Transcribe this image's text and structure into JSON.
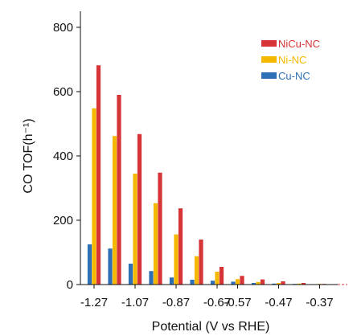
{
  "chart_data": {
    "type": "bar",
    "title": "",
    "xlabel": "Potential (V vs RHE)",
    "ylabel": "CO TOF(h⁻¹)",
    "ylim": [
      0,
      800
    ],
    "yticks": [
      0,
      200,
      400,
      600,
      800
    ],
    "ytick_labels": [
      "0",
      "200",
      "400",
      "600",
      "800"
    ],
    "categories": [
      "-1.27",
      "-1.17",
      "-1.07",
      "-0.97",
      "-0.87",
      "-0.77",
      "-0.67",
      "-0.57",
      "-0.52",
      "-0.47",
      "-0.42",
      "-0.37"
    ],
    "xtick_labels": [
      "-1.27",
      "-1.07",
      "-0.87",
      "-0.67",
      "-0.57",
      "-0.47",
      "-0.37"
    ],
    "legend_position": "top-right",
    "grid": false,
    "series": [
      {
        "name": "Cu-NC",
        "color": "#2e6fb5",
        "values": [
          125,
          112,
          65,
          42,
          22,
          15,
          12,
          9,
          5,
          3,
          2,
          1
        ]
      },
      {
        "name": "Ni-NC",
        "color": "#f5b800",
        "values": [
          548,
          462,
          345,
          253,
          156,
          88,
          40,
          17,
          8,
          5,
          3,
          2
        ]
      },
      {
        "name": "NiCu-NC",
        "color": "#d63437",
        "values": [
          682,
          590,
          468,
          348,
          237,
          140,
          55,
          27,
          16,
          10,
          5,
          2
        ]
      }
    ],
    "legend_order": [
      "NiCu-NC",
      "Ni-NC",
      "Cu-NC"
    ]
  }
}
